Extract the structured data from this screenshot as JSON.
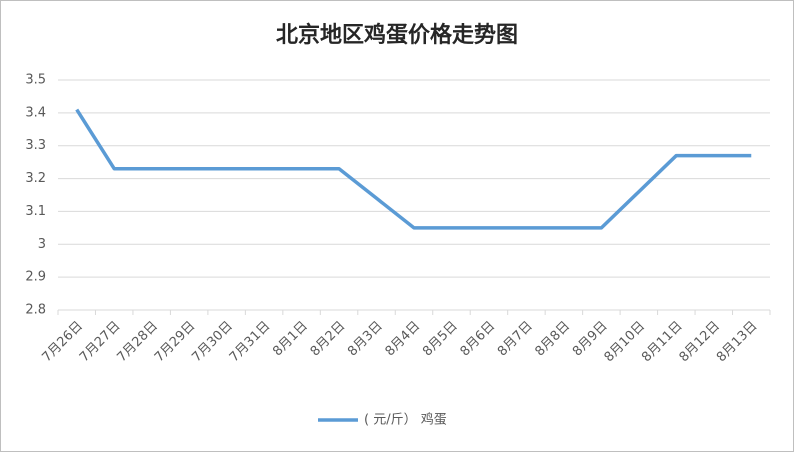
{
  "chart_data": {
    "type": "line",
    "title": "北京地区鸡蛋价格走势图",
    "categories": [
      "7月26日",
      "7月27日",
      "7月28日",
      "7月29日",
      "7月30日",
      "7月31日",
      "8月1日",
      "8月2日",
      "8月3日",
      "8月4日",
      "8月5日",
      "8月6日",
      "8月7日",
      "8月8日",
      "8月9日",
      "8月10日",
      "8月11日",
      "8月12日",
      "8月13日"
    ],
    "series": [
      {
        "name": "( 元/斤） 鸡蛋",
        "color": "#5b9bd5",
        "values": [
          3.41,
          3.23,
          3.23,
          3.23,
          3.23,
          3.23,
          3.23,
          3.23,
          3.14,
          3.05,
          3.05,
          3.05,
          3.05,
          3.05,
          3.05,
          3.16,
          3.27,
          3.27,
          3.27
        ]
      }
    ],
    "ylim": [
      2.8,
      3.5
    ],
    "yticks": [
      2.8,
      2.9,
      3,
      3.1,
      3.2,
      3.3,
      3.4,
      3.5
    ],
    "grid": true,
    "legend": "bottom"
  }
}
